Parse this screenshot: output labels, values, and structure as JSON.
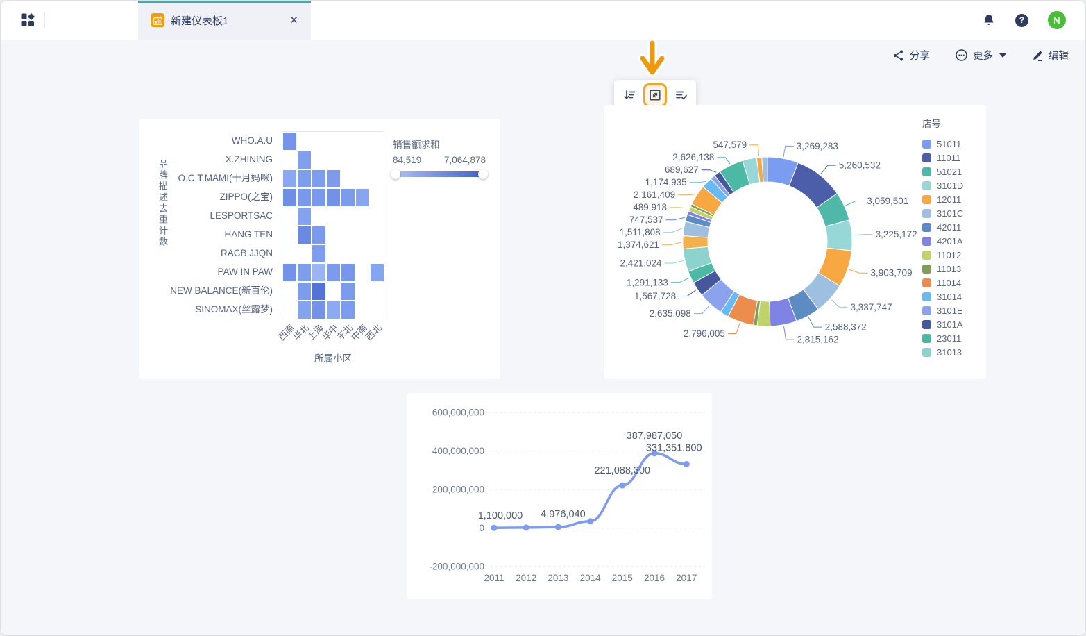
{
  "header": {
    "tab_title": "新建仪表板1",
    "avatar_initial": "N",
    "help_glyph": "?",
    "close_glyph": "✕",
    "icons": [
      "apps-grid-icon",
      "dashboard-chart-icon",
      "notification-bell-icon",
      "help-icon",
      "avatar"
    ]
  },
  "actions": {
    "share": "分享",
    "more": "更多",
    "edit": "编辑"
  },
  "floating_toolbar": {
    "icons": [
      "sort-descending-icon",
      "expand-icon",
      "multi-select-icon"
    ],
    "highlighted_icon": "expand-icon",
    "highlight_color": "#F2A431"
  },
  "annotation": {
    "arrow_color": "#EC9A10"
  },
  "chart_data": [
    {
      "type": "heatmap",
      "y_axis_title": "品牌描述去重计数",
      "x_axis_title": "所属小区",
      "columns": [
        "西南",
        "华北",
        "上海",
        "华中",
        "东北",
        "中南",
        "西北"
      ],
      "rows": [
        "WHO.A.U",
        "X.ZHINING",
        "O.C.T.MAMI(十月妈咪)",
        "ZIPPO(之宝)",
        "LESPORTSAC",
        "HANG TEN",
        "RACB JJQN",
        "PAW IN PAW",
        "NEW BALANCE(新百伦)",
        "SINOMAX(丝露梦)"
      ],
      "cells": [
        [
          "#7593E8",
          null,
          null,
          null,
          null,
          null,
          null
        ],
        [
          null,
          "#80A0EE",
          null,
          null,
          null,
          null,
          null
        ],
        [
          "#8AA7F0",
          "#7D9DED",
          "#7D9DED",
          "#7D9AEC",
          null,
          null,
          null
        ],
        [
          "#6F8EE5",
          "#7B99EC",
          "#7B99EC",
          "#7391E7",
          "#7D9BEC",
          "#87A5F0",
          null
        ],
        [
          null,
          "#84A2EF",
          null,
          null,
          null,
          null,
          null
        ],
        [
          null,
          "#6A89E2",
          "#7B9AEC",
          null,
          null,
          null,
          null
        ],
        [
          null,
          null,
          "#7E9DED",
          null,
          null,
          null,
          null
        ],
        [
          "#7492E8",
          "#7E9DED",
          "#9BB4F3",
          "#7C9BEC",
          "#7997EA",
          null,
          "#86A4EF"
        ],
        [
          null,
          "#7E9CEC",
          "#5374D6",
          null,
          "#7D9BEC",
          null,
          null
        ],
        [
          null,
          "#86A3EF",
          "#7492E8",
          "#8CAAF1",
          "#7E9CEE",
          null,
          null
        ]
      ],
      "legend": {
        "title": "销售额求和",
        "min": "84,519",
        "max": "7,064,878",
        "gradient_start": "#AEC0F4",
        "gradient_end": "#3F5FC6"
      }
    },
    {
      "type": "pie",
      "legend_title": "店号",
      "legend": [
        {
          "label": "51011",
          "color": "#7B9DF1"
        },
        {
          "label": "11011",
          "color": "#4C5EA9"
        },
        {
          "label": "51021",
          "color": "#4FB8A8"
        },
        {
          "label": "3101D",
          "color": "#98D7D7"
        },
        {
          "label": "12011",
          "color": "#F7A843"
        },
        {
          "label": "3101C",
          "color": "#9FBFE0"
        },
        {
          "label": "42011",
          "color": "#5C8CC3"
        },
        {
          "label": "4201A",
          "color": "#7F83E3"
        },
        {
          "label": "11012",
          "color": "#BFD368"
        },
        {
          "label": "11013",
          "color": "#7F9F58"
        },
        {
          "label": "11014",
          "color": "#EC8C4D"
        },
        {
          "label": "31014",
          "color": "#67BBF2"
        },
        {
          "label": "3101E",
          "color": "#8BA2EC"
        },
        {
          "label": "3101A",
          "color": "#46589D"
        },
        {
          "label": "23011",
          "color": "#4BB9A4"
        },
        {
          "label": "31013",
          "color": "#8BD3CC"
        }
      ],
      "slices": [
        {
          "value": 3269283,
          "label": "3,269,283",
          "color": "#7B9DF1"
        },
        {
          "value": 5260532,
          "label": "5,260,532",
          "color": "#4C5EA9"
        },
        {
          "value": 3059501,
          "label": "3,059,501",
          "color": "#4FB8A8"
        },
        {
          "value": 3225172,
          "label": "3,225,172",
          "color": "#98D7D7"
        },
        {
          "value": 3903709,
          "label": "3,903,709",
          "color": "#F7A843"
        },
        {
          "value": 3337747,
          "label": "3,337,747",
          "color": "#9FBFE0"
        },
        {
          "value": 2588372,
          "label": "2,588,372",
          "color": "#5C8CC3"
        },
        {
          "value": 2815162,
          "label": "2,815,162",
          "color": "#7F83E3"
        },
        {
          "value": 1350000,
          "label": "",
          "color": "#BFD368"
        },
        {
          "value": 420000,
          "label": "",
          "color": "#7F9F58"
        },
        {
          "value": 2796005,
          "label": "2,796,005",
          "color": "#EC8C4D"
        },
        {
          "value": 900000,
          "label": "",
          "color": "#67BBF2"
        },
        {
          "value": 2635098,
          "label": "2,635,098",
          "color": "#8BA2EC"
        },
        {
          "value": 1567728,
          "label": "1,567,728",
          "color": "#46589D"
        },
        {
          "value": 1291133,
          "label": "1,291,133",
          "color": "#4BB9A4"
        },
        {
          "value": 2421024,
          "label": "2,421,024",
          "color": "#8BD3CC"
        },
        {
          "value": 1374621,
          "label": "1,374,621",
          "color": "#F2B14D"
        },
        {
          "value": 1511808,
          "label": "1,511,808",
          "color": "#9FBFE0"
        },
        {
          "value": 747537,
          "label": "747,537",
          "color": "#5C8CC3"
        },
        {
          "value": 400000,
          "label": "",
          "color": "#7F83E3"
        },
        {
          "value": 489918,
          "label": "489,918",
          "color": "#BFD368"
        },
        {
          "value": 300000,
          "label": "",
          "color": "#7F9F58"
        },
        {
          "value": 2161409,
          "label": "2,161,409",
          "color": "#F7A843"
        },
        {
          "value": 1174935,
          "label": "1,174,935",
          "color": "#67BBF2"
        },
        {
          "value": 500000,
          "label": "",
          "color": "#8BA2EC"
        },
        {
          "value": 689627,
          "label": "689,627",
          "color": "#46589D"
        },
        {
          "value": 2626138,
          "label": "2,626,138",
          "color": "#4BB9A4"
        },
        {
          "value": 1500000,
          "label": "",
          "color": "#98D7D7"
        },
        {
          "value": 547579,
          "label": "547,579",
          "color": "#F7A843"
        },
        {
          "value": 600000,
          "label": "",
          "color": "#9FBFE0"
        }
      ]
    },
    {
      "type": "line",
      "x": [
        "2011",
        "2012",
        "2013",
        "2014",
        "2015",
        "2016",
        "2017"
      ],
      "values": [
        1100000,
        2000000,
        4976040,
        35000000,
        221088300,
        387987050,
        331351800
      ],
      "point_labels": [
        "1,100,000",
        "",
        "4,976,040",
        "",
        "221,088,300",
        "387,987,050",
        "331,351,800"
      ],
      "y_ticks": [
        {
          "label": "600,000,000",
          "value": 600000000
        },
        {
          "label": "400,000,000",
          "value": 400000000
        },
        {
          "label": "200,000,000",
          "value": 200000000
        },
        {
          "label": "0",
          "value": 0
        },
        {
          "label": "-200,000,000",
          "value": -200000000
        }
      ],
      "ylim": [
        -200000000,
        600000000
      ],
      "grid": "dashed",
      "line_color": "#7D9BEF"
    }
  ]
}
